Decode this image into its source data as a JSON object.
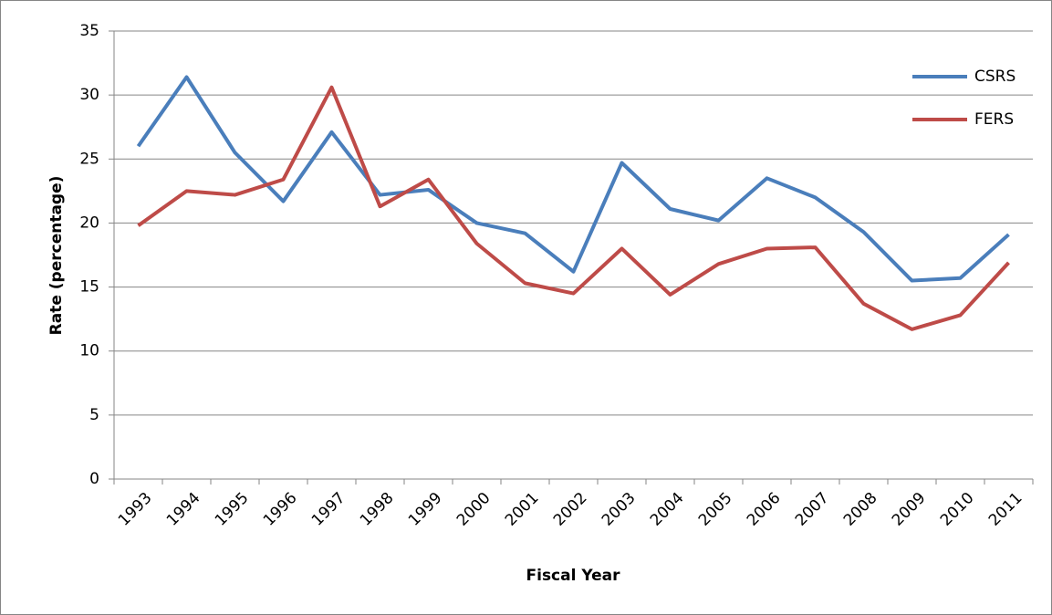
{
  "chart_data": {
    "type": "line",
    "x_label": "Fiscal Year",
    "y_label": "Rate (percentage)",
    "categories": [
      "1993",
      "1994",
      "1995",
      "1996",
      "1997",
      "1998",
      "1999",
      "2000",
      "2001",
      "2002",
      "2003",
      "2004",
      "2005",
      "2006",
      "2007",
      "2008",
      "2009",
      "2010",
      "2011"
    ],
    "series": [
      {
        "name": "CSRS",
        "color": "#4a7ebb",
        "values": [
          26.0,
          31.4,
          25.5,
          21.7,
          27.1,
          22.2,
          22.6,
          20.0,
          19.2,
          16.2,
          24.7,
          21.1,
          20.2,
          23.5,
          22.0,
          19.3,
          15.5,
          15.7,
          19.1
        ]
      },
      {
        "name": "FERS",
        "color": "#be4b48",
        "values": [
          19.8,
          22.5,
          22.2,
          23.4,
          30.6,
          21.3,
          23.4,
          18.4,
          15.3,
          14.5,
          18.0,
          14.4,
          16.8,
          18.0,
          18.1,
          13.7,
          11.7,
          12.8,
          16.9
        ]
      }
    ],
    "ylim": [
      0,
      35
    ],
    "yticks": [
      0,
      5,
      10,
      15,
      20,
      25,
      30,
      35
    ],
    "grid": true,
    "legend": "upper right"
  }
}
